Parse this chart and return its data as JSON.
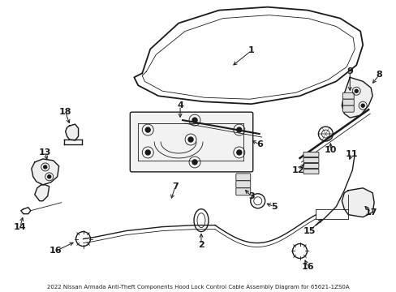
{
  "bg_color": "#ffffff",
  "line_color": "#1a1a1a",
  "lw_main": 1.0,
  "lw_thin": 0.6,
  "lw_thick": 1.5,
  "font_size": 8,
  "font_size_note": 5.0,
  "diagram_note": "2022 Nissan Armada Anti-Theft Components Hood Lock Control Cable Assembly Diagram for 65621-1ZS0A",
  "fig_w": 4.89,
  "fig_h": 3.6,
  "dpi": 100
}
